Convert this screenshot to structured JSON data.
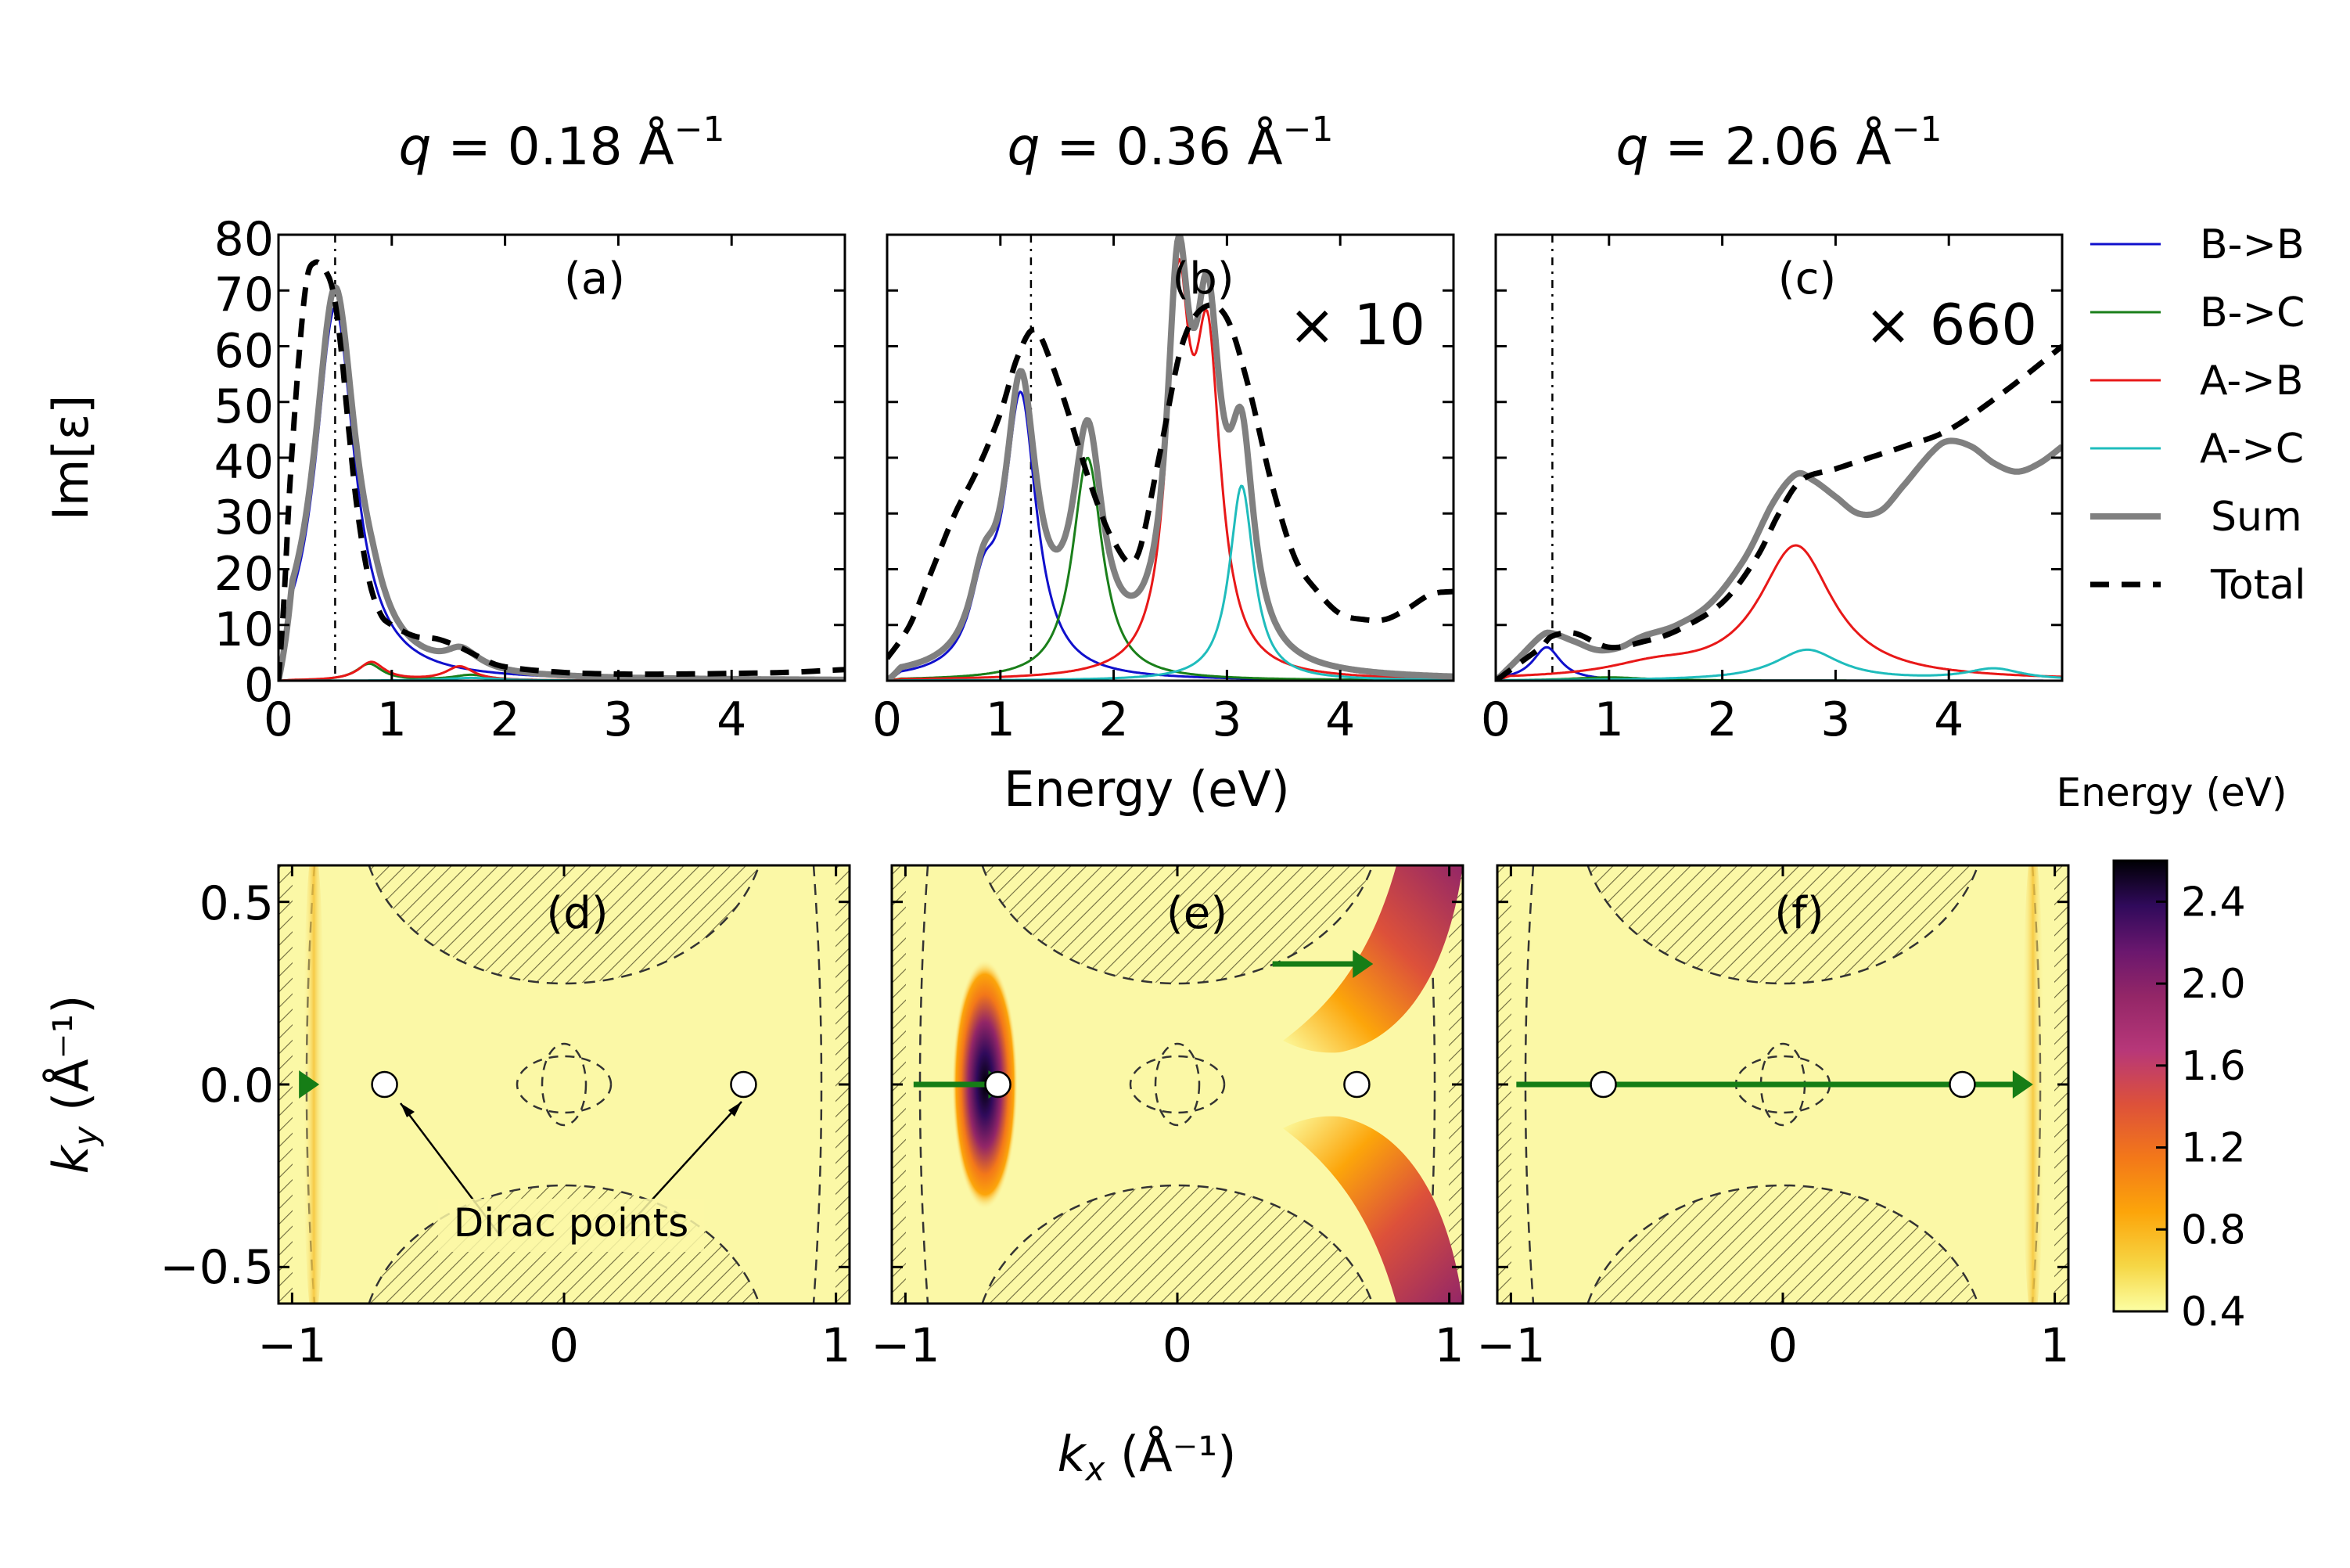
{
  "colors": {
    "BB": "#1010cc",
    "BC": "#1a7f1a",
    "AB": "#e81818",
    "AC": "#1fbcbc",
    "Sum": "#808080",
    "Total": "#000000",
    "map_bg": "#fbf8a6",
    "arrow": "#167d16"
  },
  "chart_data": [
    {
      "id": "a",
      "type": "line",
      "panel_label": "(a)",
      "title": "q = 0.18 Å⁻¹",
      "title_q": "q",
      "title_val": " = 0.18 Å",
      "title_exp": "−1",
      "scale_label": "",
      "xlabel": "",
      "ylabel": "Im[ε]",
      "xlim": [
        0,
        5
      ],
      "ylim": [
        0,
        80
      ],
      "xticks": [
        "0",
        "1",
        "2",
        "3",
        "4"
      ],
      "yticks": [
        "0",
        "10",
        "20",
        "30",
        "40",
        "50",
        "60",
        "70",
        "80"
      ],
      "vline_x": 0.5,
      "series": [
        {
          "name": "B->B",
          "key": "BB",
          "peaks": [
            [
              67,
              0.5,
              0.21
            ]
          ]
        },
        {
          "name": "B->C",
          "key": "BC",
          "peaks": [
            [
              3.0,
              0.8,
              0.14
            ],
            [
              1.0,
              1.7,
              0.2
            ]
          ]
        },
        {
          "name": "A->B",
          "key": "AB",
          "peaks": [
            [
              3.3,
              0.82,
              0.14
            ],
            [
              2.5,
              1.6,
              0.15
            ]
          ]
        },
        {
          "name": "A->C",
          "key": "AC",
          "peaks": [
            [
              0.5,
              1.7,
              0.3
            ]
          ]
        },
        {
          "name": "Sum",
          "key": "Sum",
          "peaks": [
            [
              70,
              0.5,
              0.22
            ],
            [
              3.3,
              0.82,
              0.14
            ],
            [
              2.5,
              1.6,
              0.15
            ],
            [
              1.0,
              1.7,
              0.2
            ]
          ]
        },
        {
          "name": "Total",
          "key": "Total",
          "points": [
            [
              0,
              0
            ],
            [
              0.05,
              15
            ],
            [
              0.1,
              35
            ],
            [
              0.18,
              58
            ],
            [
              0.25,
              72
            ],
            [
              0.32,
              75
            ],
            [
              0.4,
              74
            ],
            [
              0.48,
              70
            ],
            [
              0.55,
              60
            ],
            [
              0.62,
              45
            ],
            [
              0.7,
              30
            ],
            [
              0.8,
              18
            ],
            [
              0.9,
              12
            ],
            [
              1.0,
              10
            ],
            [
              1.2,
              8
            ],
            [
              1.4,
              7.5
            ],
            [
              1.6,
              6
            ],
            [
              1.8,
              4
            ],
            [
              2.0,
              2.5
            ],
            [
              2.5,
              1.5
            ],
            [
              3.0,
              1.2
            ],
            [
              3.5,
              1.2
            ],
            [
              4.0,
              1.3
            ],
            [
              4.5,
              1.5
            ],
            [
              5.0,
              2.0
            ]
          ]
        }
      ]
    },
    {
      "id": "b",
      "type": "line",
      "panel_label": "(b)",
      "title": "q = 0.36 Å⁻¹",
      "title_q": "q",
      "title_val": " = 0.36 Å",
      "title_exp": "−1",
      "scale_label": "× 10",
      "xlabel": "Energy (eV)",
      "ylabel": "",
      "xlim": [
        0,
        5
      ],
      "ylim": [
        0,
        80
      ],
      "xticks": [
        "0",
        "1",
        "2",
        "3",
        "4"
      ],
      "yticks": [],
      "vline_x": 1.27,
      "series": [
        {
          "name": "B->B",
          "key": "BB",
          "peaks": [
            [
              50,
              1.18,
              0.17
            ],
            [
              12,
              0.85,
              0.14
            ]
          ]
        },
        {
          "name": "B->C",
          "key": "BC",
          "peaks": [
            [
              40,
              1.77,
              0.16
            ]
          ]
        },
        {
          "name": "A->B",
          "key": "AB",
          "peaks": [
            [
              63,
              2.57,
              0.12
            ],
            [
              55,
              2.83,
              0.14
            ]
          ]
        },
        {
          "name": "A->C",
          "key": "AC",
          "peaks": [
            [
              35,
              3.13,
              0.13
            ]
          ]
        },
        {
          "name": "Sum",
          "key": "Sum",
          "peaks": [
            [
              50,
              1.18,
              0.17
            ],
            [
              12,
              0.85,
              0.14
            ],
            [
              40,
              1.77,
              0.16
            ],
            [
              63,
              2.57,
              0.12
            ],
            [
              55,
              2.83,
              0.14
            ],
            [
              35,
              3.13,
              0.13
            ]
          ]
        },
        {
          "name": "Total",
          "key": "Total",
          "points": [
            [
              0,
              4
            ],
            [
              0.2,
              10
            ],
            [
              0.4,
              20
            ],
            [
              0.6,
              30
            ],
            [
              0.8,
              38
            ],
            [
              1.0,
              48
            ],
            [
              1.15,
              58
            ],
            [
              1.3,
              63
            ],
            [
              1.45,
              57
            ],
            [
              1.6,
              48
            ],
            [
              1.8,
              35
            ],
            [
              2.0,
              25
            ],
            [
              2.2,
              22
            ],
            [
              2.4,
              40
            ],
            [
              2.6,
              60
            ],
            [
              2.8,
              67
            ],
            [
              3.0,
              65
            ],
            [
              3.2,
              52
            ],
            [
              3.4,
              35
            ],
            [
              3.6,
              22
            ],
            [
              3.8,
              16
            ],
            [
              4.0,
              12
            ],
            [
              4.2,
              11
            ],
            [
              4.4,
              11
            ],
            [
              4.6,
              13
            ],
            [
              4.8,
              15.5
            ],
            [
              5.0,
              16
            ]
          ]
        }
      ]
    },
    {
      "id": "c",
      "type": "line",
      "panel_label": "(c)",
      "title": "q = 2.06 Å⁻¹",
      "title_q": "q",
      "title_val": " = 2.06 Å",
      "title_exp": "−1",
      "scale_label": "× 660",
      "xlabel": "",
      "ylabel": "",
      "xlim": [
        0,
        5
      ],
      "ylim": [
        0,
        80
      ],
      "xticks": [
        "0",
        "1",
        "2",
        "3",
        "4"
      ],
      "yticks": [],
      "vline_x": 0.5,
      "series": [
        {
          "name": "B->B",
          "key": "BB",
          "peaks": [
            [
              6,
              0.45,
              0.15
            ]
          ]
        },
        {
          "name": "B->C",
          "key": "BC",
          "peaks": [
            [
              0.6,
              1.0,
              0.4
            ]
          ]
        },
        {
          "name": "A->B",
          "key": "AB",
          "peaks": [
            [
              24,
              2.65,
              0.4
            ],
            [
              2,
              1.4,
              0.5
            ]
          ]
        },
        {
          "name": "A->C",
          "key": "AC",
          "peaks": [
            [
              5.5,
              2.75,
              0.35
            ],
            [
              2,
              4.4,
              0.3
            ]
          ]
        },
        {
          "name": "Sum",
          "key": "Sum",
          "points": [
            [
              0,
              0
            ],
            [
              0.2,
              4
            ],
            [
              0.4,
              8
            ],
            [
              0.5,
              8.5
            ],
            [
              0.7,
              7
            ],
            [
              0.9,
              5.5
            ],
            [
              1.1,
              6
            ],
            [
              1.3,
              8
            ],
            [
              1.6,
              10
            ],
            [
              1.9,
              14
            ],
            [
              2.2,
              22
            ],
            [
              2.45,
              32
            ],
            [
              2.65,
              37
            ],
            [
              2.8,
              36
            ],
            [
              3.0,
              33
            ],
            [
              3.2,
              30
            ],
            [
              3.4,
              30.5
            ],
            [
              3.6,
              35
            ],
            [
              3.85,
              41
            ],
            [
              4.0,
              43
            ],
            [
              4.2,
              42
            ],
            [
              4.4,
              39
            ],
            [
              4.6,
              37.5
            ],
            [
              4.8,
              39
            ],
            [
              5.0,
              42
            ]
          ]
        },
        {
          "name": "Total",
          "key": "Total",
          "points": [
            [
              0,
              0
            ],
            [
              0.2,
              3
            ],
            [
              0.4,
              6
            ],
            [
              0.5,
              8
            ],
            [
              0.7,
              8.5
            ],
            [
              1.0,
              6
            ],
            [
              1.3,
              7
            ],
            [
              1.6,
              9
            ],
            [
              2.0,
              14
            ],
            [
              2.3,
              22
            ],
            [
              2.5,
              30
            ],
            [
              2.7,
              36
            ],
            [
              3.0,
              38
            ],
            [
              3.3,
              40
            ],
            [
              3.6,
              42
            ],
            [
              4.0,
              45
            ],
            [
              4.5,
              52
            ],
            [
              5.0,
              60
            ]
          ]
        }
      ]
    },
    {
      "id": "d",
      "type": "heatmap",
      "panel_label": "(d)",
      "xlabel": "",
      "ylabel": "k_y (Å⁻¹)",
      "xlim": [
        -1.05,
        1.05
      ],
      "ylim": [
        -0.6,
        0.6
      ],
      "xticks": [
        "−1",
        "0",
        "1"
      ],
      "yticks": [
        "−0.5",
        "0.0",
        "0.5"
      ],
      "dirac_points": [
        [
          -0.66,
          0
        ],
        [
          0.66,
          0
        ]
      ],
      "annotation": "Dirac points",
      "arrow": {
        "from": [
          -0.97,
          0
        ],
        "to": [
          -0.9,
          0
        ]
      },
      "hotspots": [
        {
          "x": -0.92,
          "y": 0,
          "sx": 0.03,
          "sy": 0.8,
          "v": 0.6
        }
      ]
    },
    {
      "id": "e",
      "type": "heatmap",
      "panel_label": "(e)",
      "xlabel": "k_x (Å⁻¹)",
      "ylabel": "",
      "xlim": [
        -1.05,
        1.05
      ],
      "ylim": [
        -0.6,
        0.6
      ],
      "xticks": [
        "−1",
        "0",
        "1"
      ],
      "yticks": [],
      "dirac_points": [
        [
          -0.66,
          0
        ],
        [
          0.66,
          0
        ]
      ],
      "annotation": "",
      "arrow": {
        "from": [
          -0.97,
          0
        ],
        "to": [
          -0.62,
          0
        ]
      },
      "arrow2": {
        "from": [
          0.35,
          0.33
        ],
        "to": [
          0.72,
          0.33
        ]
      }
    },
    {
      "id": "f",
      "type": "heatmap",
      "panel_label": "(f)",
      "xlabel": "",
      "ylabel": "",
      "xlim": [
        -1.05,
        1.05
      ],
      "ylim": [
        -0.6,
        0.6
      ],
      "xticks": [
        "−1",
        "0",
        "1"
      ],
      "yticks": [],
      "dirac_points": [
        [
          -0.66,
          0
        ],
        [
          0.66,
          0
        ]
      ],
      "annotation": "",
      "arrow": {
        "from": [
          -0.98,
          0
        ],
        "to": [
          0.92,
          0
        ]
      },
      "hotspots": [
        {
          "x": 0.92,
          "y": 0,
          "sx": 0.03,
          "sy": 0.8,
          "v": 0.6
        }
      ]
    }
  ],
  "legend": [
    {
      "label": "B->B",
      "key": "BB"
    },
    {
      "label": "B->C",
      "key": "BC"
    },
    {
      "label": "A->B",
      "key": "AB"
    },
    {
      "label": "A->C",
      "key": "AC"
    },
    {
      "label": "Sum",
      "key": "Sum"
    },
    {
      "label": "Total",
      "key": "Total"
    }
  ],
  "colorbar": {
    "title": "Energy (eV)",
    "range": [
      0.4,
      2.6
    ],
    "ticks": [
      "0.4",
      "0.8",
      "1.2",
      "1.6",
      "2.0",
      "2.4"
    ],
    "tick_values": [
      0.4,
      0.8,
      1.2,
      1.6,
      2.0,
      2.4
    ]
  }
}
